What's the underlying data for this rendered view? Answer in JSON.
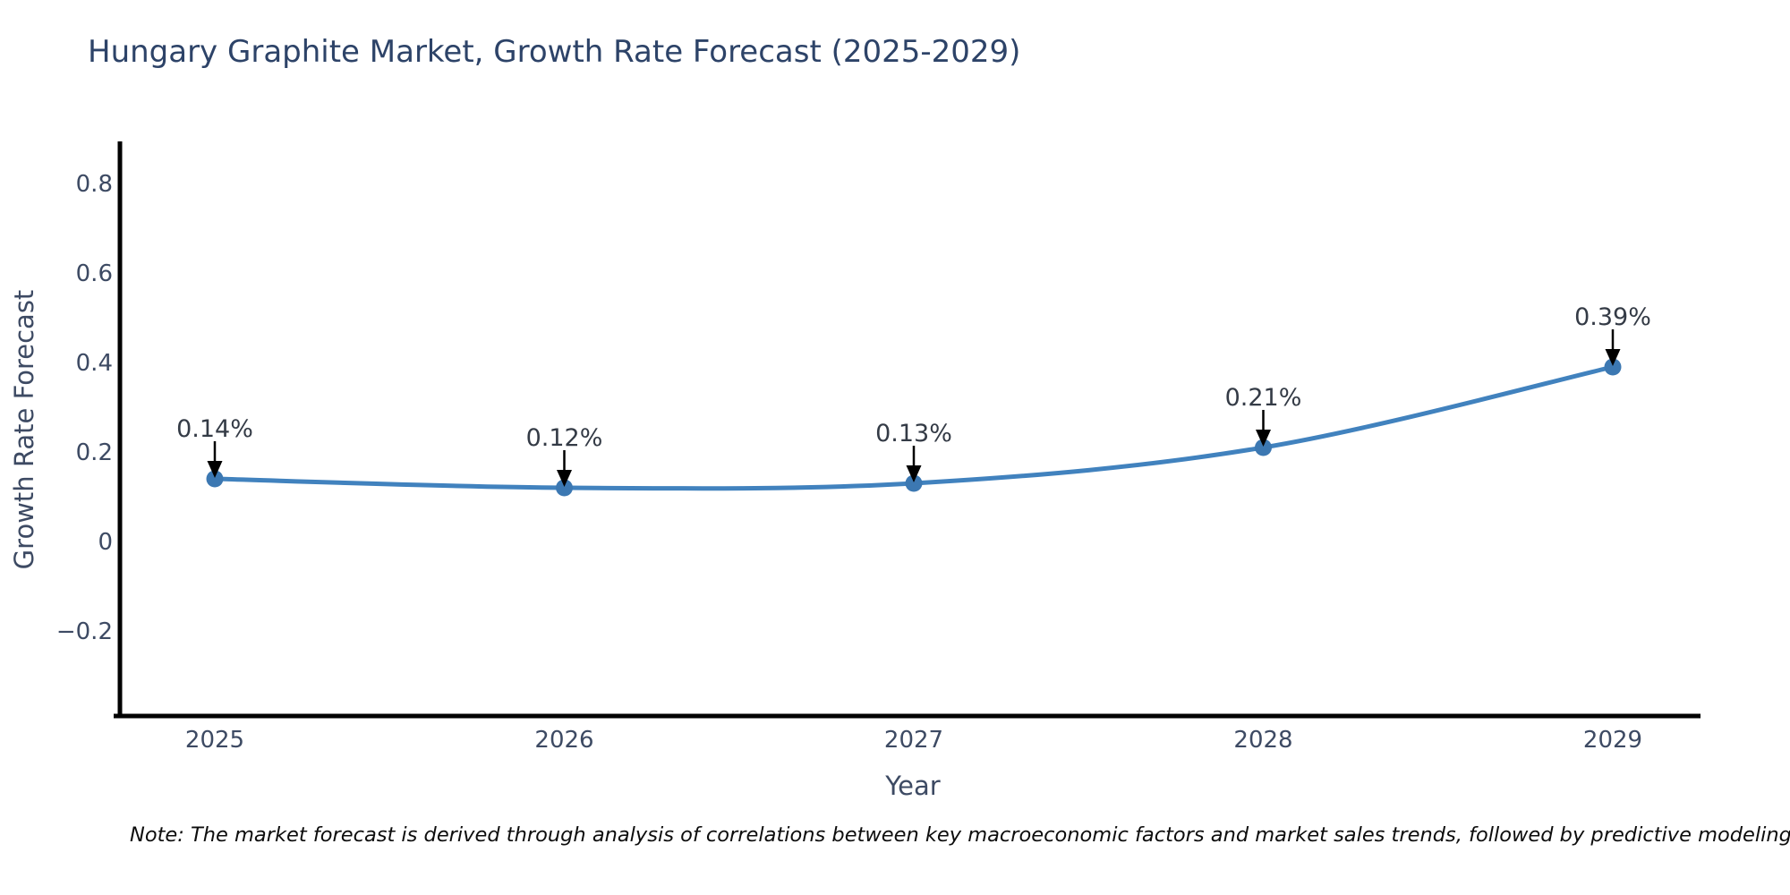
{
  "chart_data": {
    "type": "line",
    "title": "Hungary Graphite Market, Growth Rate Forecast (2025-2029)",
    "xlabel": "Year",
    "ylabel": "Growth Rate Forecast",
    "x": [
      2025,
      2026,
      2027,
      2028,
      2029
    ],
    "xticks": [
      "2025",
      "2026",
      "2027",
      "2028",
      "2029"
    ],
    "series": [
      {
        "name": "Growth Rate Forecast",
        "values": [
          0.14,
          0.12,
          0.13,
          0.21,
          0.39
        ],
        "point_labels": [
          "0.14%",
          "0.12%",
          "0.13%",
          "0.21%",
          "0.39%"
        ]
      }
    ],
    "yticks": [
      "0.8",
      "0.6",
      "0.4",
      "0.2",
      "0",
      "−0.2"
    ],
    "ytick_values": [
      0.8,
      0.6,
      0.4,
      0.2,
      0,
      -0.2
    ],
    "ylim": [
      -0.39,
      0.89
    ],
    "grid": false,
    "legend": "none",
    "line_color": "#4182be",
    "marker_color": "#3c78b2",
    "spine_color": "#000000",
    "arrow_color": "#000000",
    "tick_label_color": "#3d4a63",
    "annotation_label_color": "#343b46",
    "note": "Note: The market forecast is derived through analysis of correlations between key macroeconomic factors and market sales trends, followed by predictive modeling to project future sales"
  }
}
